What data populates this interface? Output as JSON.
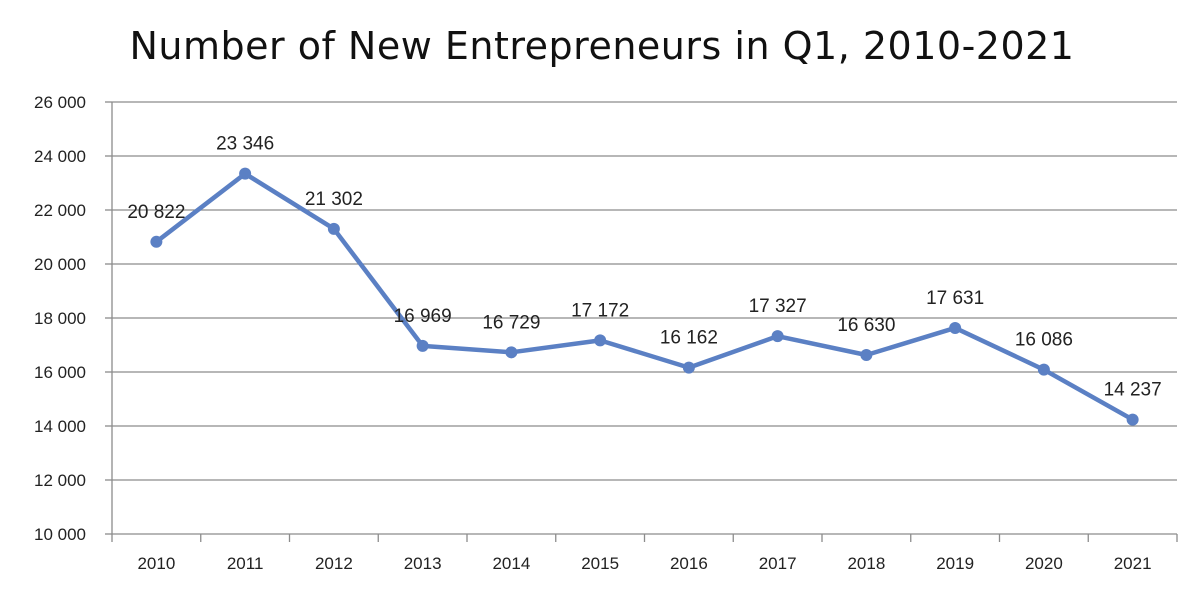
{
  "chart_data": {
    "type": "line",
    "title": "Number of New Entrepreneurs in Q1, 2010-2021",
    "xlabel": "",
    "ylabel": "",
    "categories": [
      "2010",
      "2011",
      "2012",
      "2013",
      "2014",
      "2015",
      "2016",
      "2017",
      "2018",
      "2019",
      "2020",
      "2021"
    ],
    "values": [
      20822,
      23346,
      21302,
      16969,
      16729,
      17172,
      16162,
      17327,
      16630,
      17631,
      16086,
      14237
    ],
    "data_labels": [
      "20 822",
      "23 346",
      "21 302",
      "16 969",
      "16 729",
      "17 172",
      "16 162",
      "17 327",
      "16 630",
      "17 631",
      "16 086",
      "14 237"
    ],
    "ylim": [
      10000,
      26000
    ],
    "yticks": [
      10000,
      12000,
      14000,
      16000,
      18000,
      20000,
      22000,
      24000,
      26000
    ],
    "ytick_labels": [
      "10 000",
      "12 000",
      "14 000",
      "16 000",
      "18 000",
      "20 000",
      "22 000",
      "24 000",
      "26 000"
    ],
    "grid": true,
    "legend": "none",
    "colors": {
      "line": "#5b80c4",
      "grid": "#8c8c8c",
      "axis": "#8c8c8c",
      "text": "#222222"
    }
  }
}
